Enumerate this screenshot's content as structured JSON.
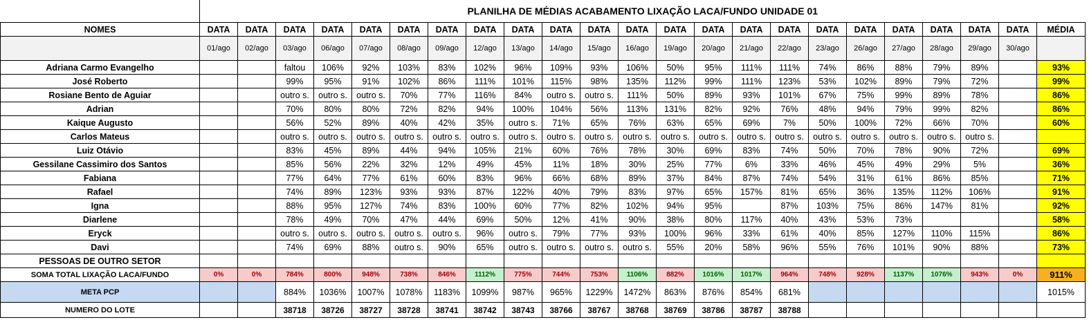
{
  "title": "PLANILHA DE MÉDIAS ACABAMENTO LIXAÇÃO LACA/FUNDO UNIDADE 01",
  "header": {
    "names_label": "NOMES",
    "date_label": "DATA",
    "media_label": "MÉDIA",
    "dates": [
      "01/ago",
      "02/ago",
      "03/ago",
      "06/ago",
      "07/ago",
      "08/ago",
      "09/ago",
      "12/ago",
      "13/ago",
      "14/ago",
      "15/ago",
      "16/ago",
      "19/ago",
      "20/ago",
      "21/ago",
      "22/ago",
      "23/ago",
      "26/ago",
      "27/ago",
      "28/ago",
      "29/ago",
      "30/ago"
    ]
  },
  "rows": [
    {
      "name": "Adriana Carmo Evangelho",
      "values": [
        "",
        "",
        "faltou",
        "106%",
        "92%",
        "103%",
        "83%",
        "102%",
        "96%",
        "109%",
        "93%",
        "106%",
        "50%",
        "95%",
        "111%",
        "111%",
        "74%",
        "86%",
        "88%",
        "79%",
        "89%",
        ""
      ],
      "media": "93%"
    },
    {
      "name": "José Roberto",
      "values": [
        "",
        "",
        "99%",
        "95%",
        "91%",
        "102%",
        "86%",
        "111%",
        "101%",
        "115%",
        "98%",
        "135%",
        "112%",
        "99%",
        "111%",
        "123%",
        "53%",
        "102%",
        "89%",
        "79%",
        "72%",
        ""
      ],
      "media": "99%"
    },
    {
      "name": "Rosiane Bento de Aguiar",
      "values": [
        "",
        "",
        "outro s.",
        "outro s.",
        "outro s.",
        "70%",
        "77%",
        "116%",
        "84%",
        "outro s.",
        "outro s.",
        "111%",
        "50%",
        "89%",
        "93%",
        "101%",
        "67%",
        "75%",
        "99%",
        "89%",
        "78%",
        ""
      ],
      "media": "86%"
    },
    {
      "name": "Adrian",
      "values": [
        "",
        "",
        "70%",
        "80%",
        "80%",
        "72%",
        "82%",
        "94%",
        "100%",
        "104%",
        "56%",
        "113%",
        "131%",
        "82%",
        "92%",
        "76%",
        "48%",
        "94%",
        "79%",
        "99%",
        "82%",
        ""
      ],
      "media": "86%"
    },
    {
      "name": "Kaique Augusto",
      "values": [
        "",
        "",
        "56%",
        "52%",
        "89%",
        "40%",
        "42%",
        "35%",
        "outro s.",
        "71%",
        "65%",
        "76%",
        "63%",
        "65%",
        "69%",
        "7%",
        "50%",
        "100%",
        "72%",
        "66%",
        "70%",
        ""
      ],
      "media": "60%"
    },
    {
      "name": "Carlos Mateus",
      "values": [
        "",
        "",
        "outro s.",
        "outro s.",
        "outro s.",
        "outro s.",
        "outro s.",
        "outro s.",
        "outro s.",
        "outro s.",
        "outro s.",
        "outro s.",
        "outro s.",
        "outro s.",
        "outro s.",
        "outro s.",
        "outro s.",
        "outro s.",
        "outro s.",
        "outro s.",
        "outro s.",
        ""
      ],
      "media": ""
    },
    {
      "name": "Luiz Otávio",
      "values": [
        "",
        "",
        "83%",
        "45%",
        "89%",
        "44%",
        "94%",
        "105%",
        "21%",
        "60%",
        "76%",
        "78%",
        "30%",
        "69%",
        "83%",
        "74%",
        "50%",
        "70%",
        "78%",
        "90%",
        "72%",
        ""
      ],
      "media": "69%"
    },
    {
      "name": "Gessilane Cassimiro dos Santos",
      "values": [
        "",
        "",
        "85%",
        "56%",
        "22%",
        "32%",
        "12%",
        "49%",
        "45%",
        "11%",
        "18%",
        "30%",
        "25%",
        "77%",
        "6%",
        "33%",
        "46%",
        "45%",
        "49%",
        "29%",
        "5%",
        ""
      ],
      "media": "36%"
    },
    {
      "name": "Fabiana",
      "values": [
        "",
        "",
        "77%",
        "64%",
        "77%",
        "61%",
        "60%",
        "83%",
        "96%",
        "66%",
        "68%",
        "89%",
        "37%",
        "84%",
        "87%",
        "74%",
        "54%",
        "31%",
        "61%",
        "86%",
        "85%",
        ""
      ],
      "media": "71%"
    },
    {
      "name": "Rafael",
      "values": [
        "",
        "",
        "74%",
        "89%",
        "123%",
        "93%",
        "93%",
        "87%",
        "122%",
        "40%",
        "79%",
        "83%",
        "97%",
        "65%",
        "157%",
        "81%",
        "65%",
        "36%",
        "135%",
        "112%",
        "106%",
        ""
      ],
      "media": "91%"
    },
    {
      "name": "Igna",
      "values": [
        "",
        "",
        "88%",
        "95%",
        "127%",
        "74%",
        "83%",
        "100%",
        "60%",
        "77%",
        "82%",
        "102%",
        "94%",
        "95%",
        "",
        "87%",
        "103%",
        "75%",
        "86%",
        "147%",
        "81%",
        ""
      ],
      "media": "92%"
    },
    {
      "name": "Diarlene",
      "values": [
        "",
        "",
        "78%",
        "49%",
        "70%",
        "47%",
        "44%",
        "69%",
        "50%",
        "12%",
        "41%",
        "90%",
        "38%",
        "80%",
        "117%",
        "40%",
        "43%",
        "53%",
        "73%",
        "",
        "",
        ""
      ],
      "media": "58%"
    },
    {
      "name": "Eryck",
      "values": [
        "",
        "",
        "outro s.",
        "outro s.",
        "outro s.",
        "outro s.",
        "outro s.",
        "96%",
        "outro s.",
        "79%",
        "77%",
        "93%",
        "100%",
        "96%",
        "33%",
        "61%",
        "40%",
        "85%",
        "127%",
        "110%",
        "115%",
        ""
      ],
      "media": "86%"
    },
    {
      "name": "Davi",
      "values": [
        "",
        "",
        "74%",
        "69%",
        "88%",
        "outro s.",
        "90%",
        "65%",
        "outro s.",
        "outro s.",
        "outro s.",
        "outro s.",
        "55%",
        "20%",
        "58%",
        "96%",
        "55%",
        "76%",
        "101%",
        "90%",
        "88%",
        ""
      ],
      "media": "73%"
    },
    {
      "name": "PESSOAS DE OUTRO SETOR",
      "values": [
        "",
        "",
        "",
        "",
        "",
        "",
        "",
        "",
        "",
        "",
        "",
        "",
        "",
        "",
        "",
        "",
        "",
        "",
        "",
        "",
        "",
        ""
      ],
      "media": ""
    }
  ],
  "soma": {
    "label": "SOMA TOTAL LIXAÇÃO LACA/FUNDO",
    "values": [
      "0%",
      "0%",
      "784%",
      "800%",
      "948%",
      "738%",
      "846%",
      "1112%",
      "775%",
      "744%",
      "753%",
      "1106%",
      "882%",
      "1016%",
      "1017%",
      "964%",
      "748%",
      "928%",
      "1137%",
      "1076%",
      "943%",
      "0%"
    ],
    "status": [
      "r",
      "r",
      "r",
      "r",
      "r",
      "r",
      "r",
      "g",
      "r",
      "r",
      "r",
      "g",
      "r",
      "g",
      "g",
      "r",
      "r",
      "r",
      "g",
      "g",
      "r",
      "r"
    ],
    "media": "911%",
    "colors": {
      "red_bg": "#f8cbcb",
      "red_fg": "#9c0006",
      "green_bg": "#c6efce",
      "green_fg": "#006100",
      "media_bg": "#f5b120"
    }
  },
  "meta": {
    "label": "META PCP",
    "values": [
      "",
      "",
      "884%",
      "1036%",
      "1007%",
      "1078%",
      "1183%",
      "1099%",
      "987%",
      "965%",
      "1229%",
      "1472%",
      "863%",
      "876%",
      "854%",
      "681%",
      "",
      "",
      "",
      "",
      "",
      ""
    ],
    "media": "1015%",
    "color": "#c5d9f1"
  },
  "lote": {
    "label": "NUMERO DO LOTE",
    "values": [
      "",
      "",
      "38718",
      "38726",
      "38727",
      "38728",
      "38741",
      "38742",
      "38743",
      "38766",
      "38767",
      "38768",
      "38769",
      "38786",
      "38787",
      "38788",
      "",
      "",
      "",
      "",
      "",
      ""
    ],
    "media": ""
  },
  "highlight_color": "#ffff00"
}
